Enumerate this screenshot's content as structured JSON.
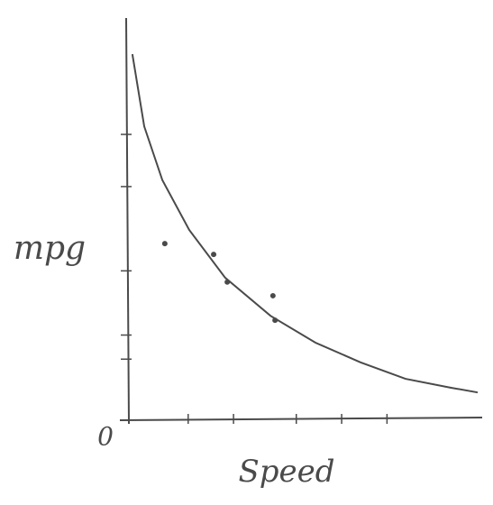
{
  "chart_data": {
    "type": "scatter",
    "x_label": "Speed",
    "y_label": "mpg",
    "origin_label": "0",
    "xlim": [
      0,
      10
    ],
    "ylim": [
      0,
      10
    ],
    "xticks": [
      1.7,
      3,
      4.8,
      6.1,
      7.4
    ],
    "yticks": [
      1.5,
      2.1,
      3.7,
      5.8,
      7.1
    ],
    "color": "#4a4a4a",
    "series": [
      {
        "type": "scatter",
        "x": [
          1.03,
          2.43,
          2.82,
          4.13,
          4.19
        ],
        "values": [
          4.38,
          4.11,
          3.42,
          3.08,
          2.47
        ]
      },
      {
        "type": "line",
        "x": [
          0.1,
          0.44,
          0.96,
          1.73,
          2.76,
          4.06,
          5.35,
          6.64,
          7.93,
          9.22,
          10
        ],
        "values": [
          9.1,
          7.3,
          5.96,
          4.72,
          3.53,
          2.58,
          1.91,
          1.42,
          1.01,
          0.79,
          0.67
        ]
      }
    ]
  }
}
